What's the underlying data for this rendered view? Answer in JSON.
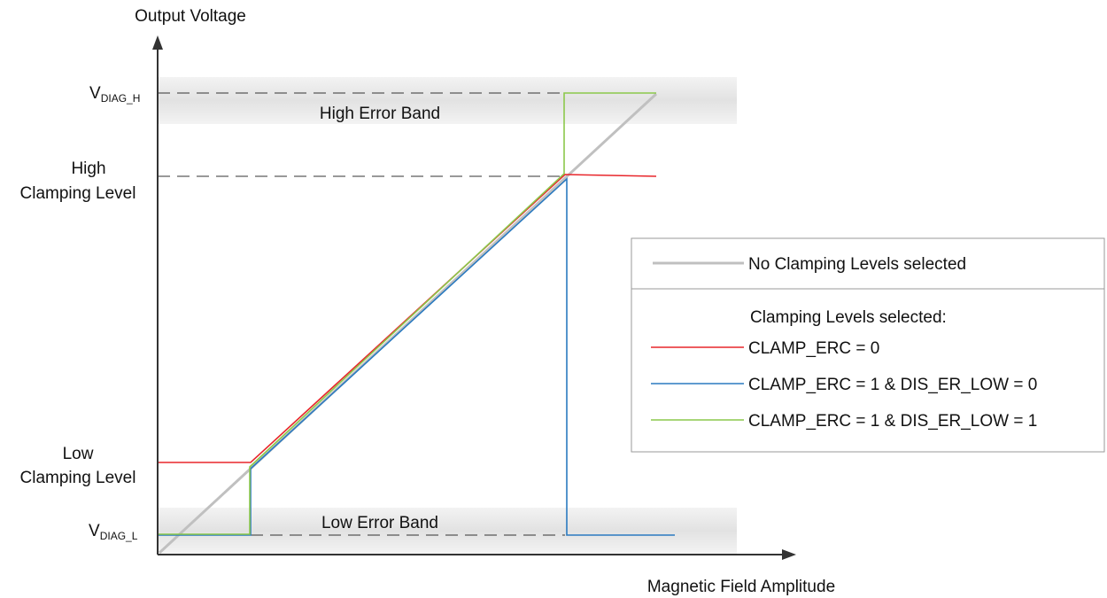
{
  "axes": {
    "y_title": "Output Voltage",
    "x_title": "Magnetic Field Amplitude"
  },
  "y_labels": {
    "vdiag_h_main": "V",
    "vdiag_h_sub": "DIAG_H",
    "high_clamp_line1": "High",
    "high_clamp_line2": "Clamping Level",
    "low_clamp_line1": "Low",
    "low_clamp_line2": "Clamping Level",
    "vdiag_l_main": "V",
    "vdiag_l_sub": "DIAG_L"
  },
  "bands": {
    "high": "High Error Band",
    "low": "Low Error Band"
  },
  "legend": {
    "no_clamp": "No Clamping Levels selected",
    "header": "Clamping Levels selected:",
    "clamp_erc0": "CLAMP_ERC = 0",
    "clamp_erc1_dis0": "CLAMP_ERC = 1 & DIS_ER_LOW = 0",
    "clamp_erc1_dis1": "CLAMP_ERC = 1 & DIS_ER_LOW = 1"
  },
  "colors": {
    "axis": "#333333",
    "band_fill": "#e6e6e6",
    "no_clamp": "#c0c0c0",
    "clamp_erc0": "#e8262b",
    "clamp_erc1_dis0": "#2a7ac0",
    "clamp_erc1_dis1": "#8cc84b",
    "dash": "#333333"
  }
}
